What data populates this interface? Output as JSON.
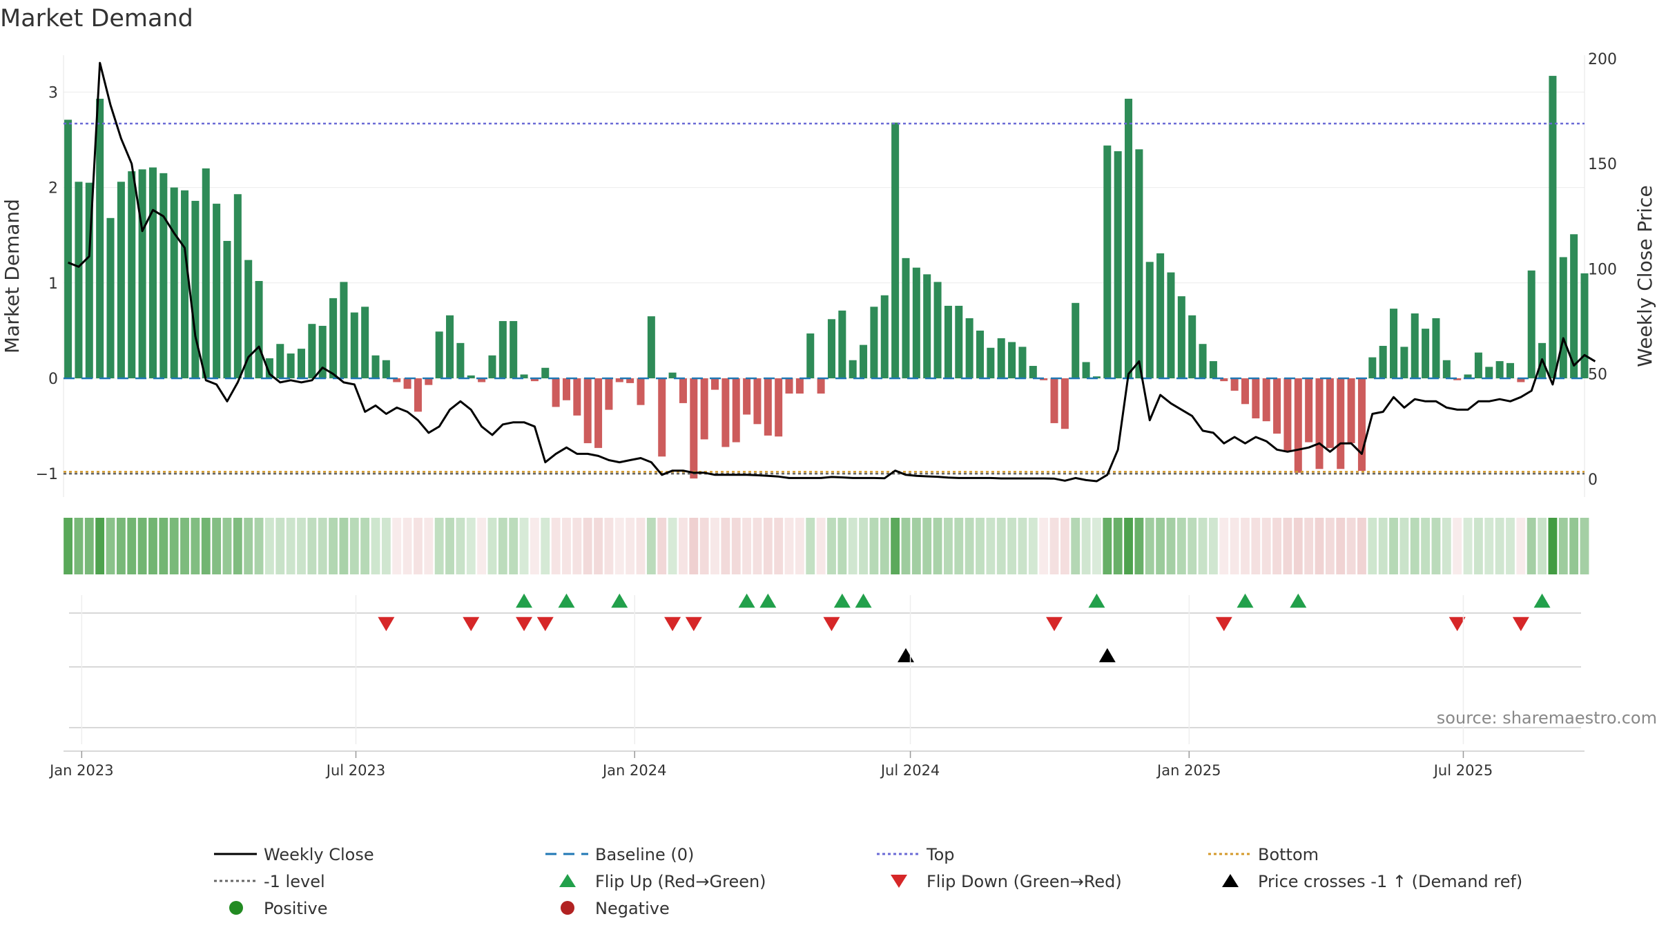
{
  "chart_data": {
    "type": "bar",
    "title": "Market Demand",
    "ylabel": "Market Demand",
    "y2label": "Weekly Close Price",
    "ylim": [
      -1.1,
      3.35
    ],
    "y2lim": [
      -2,
      200
    ],
    "yticks": [
      -1,
      0,
      1,
      2,
      3
    ],
    "y2ticks": [
      0,
      50,
      100,
      150,
      200
    ],
    "x_start": "2022-12-20",
    "x_end": "2025-09-19",
    "date_ticks": [
      {
        "date": "2023-01-01",
        "label": "Jan 2023"
      },
      {
        "date": "2023-07-01",
        "label": "Jul 2023"
      },
      {
        "date": "2024-01-01",
        "label": "Jan 2024"
      },
      {
        "date": "2024-07-01",
        "label": "Jul 2024"
      },
      {
        "date": "2025-01-01",
        "label": "Jan 2025"
      },
      {
        "date": "2025-07-01",
        "label": "Jul 2025"
      }
    ],
    "first_week": "2022-12-23",
    "week_step_days": 7,
    "demand": [
      2.71,
      2.06,
      2.05,
      2.93,
      1.68,
      2.06,
      2.17,
      2.19,
      2.21,
      2.15,
      2.0,
      1.97,
      1.86,
      2.2,
      1.83,
      1.44,
      1.93,
      1.24,
      1.02,
      0.21,
      0.36,
      0.26,
      0.31,
      0.57,
      0.55,
      0.84,
      1.01,
      0.69,
      0.75,
      0.24,
      0.19,
      -0.04,
      -0.11,
      -0.35,
      -0.07,
      0.49,
      0.66,
      0.37,
      0.03,
      -0.04,
      0.24,
      0.6,
      0.6,
      0.04,
      -0.03,
      0.11,
      -0.3,
      -0.23,
      -0.39,
      -0.68,
      -0.73,
      -0.33,
      -0.04,
      -0.05,
      -0.28,
      0.65,
      -0.82,
      0.06,
      -0.26,
      -1.05,
      -0.64,
      -0.12,
      -0.72,
      -0.67,
      -0.38,
      -0.48,
      -0.6,
      -0.61,
      -0.16,
      -0.16,
      0.47,
      -0.16,
      0.62,
      0.71,
      0.19,
      0.35,
      0.75,
      0.87,
      2.68,
      1.26,
      1.16,
      1.09,
      1.01,
      0.76,
      0.76,
      0.63,
      0.5,
      0.32,
      0.42,
      0.38,
      0.33,
      0.13,
      -0.02,
      -0.47,
      -0.53,
      0.79,
      0.17,
      0.02,
      2.44,
      2.38,
      2.93,
      2.4,
      1.22,
      1.31,
      1.11,
      0.86,
      0.66,
      0.36,
      0.18,
      -0.03,
      -0.13,
      -0.27,
      -0.42,
      -0.45,
      -0.58,
      -0.76,
      -0.99,
      -0.67,
      -0.95,
      -0.73,
      -0.95,
      -0.68,
      -0.97,
      0.22,
      0.34,
      0.73,
      0.33,
      0.68,
      0.52,
      0.63,
      0.19,
      -0.02,
      0.04,
      0.27,
      0.12,
      0.18,
      0.16,
      -0.04,
      1.13,
      0.37,
      3.17,
      1.27,
      1.51,
      1.1
    ],
    "weekly_close": [
      103,
      101,
      106,
      198,
      178,
      162,
      150,
      118,
      128,
      125,
      117,
      110,
      68,
      47,
      45,
      37,
      46,
      58,
      63,
      50,
      46,
      47,
      46,
      47,
      53,
      50,
      46,
      45,
      32,
      35,
      31,
      34,
      32,
      28,
      22,
      25,
      33,
      37,
      33,
      25,
      21,
      26,
      27,
      27,
      25,
      8,
      12,
      15,
      12,
      12,
      11,
      9,
      8,
      9,
      10,
      8,
      2,
      4,
      4,
      3,
      3,
      2,
      2,
      2,
      2,
      1.8,
      1.5,
      1.2,
      0.5,
      0.5,
      0.5,
      0.5,
      1,
      0.8,
      0.5,
      0.5,
      0.5,
      0.4,
      4,
      2,
      1.5,
      1.3,
      1.1,
      0.7,
      0.5,
      0.5,
      0.5,
      0.5,
      0.3,
      0.3,
      0.3,
      0.3,
      0.3,
      0.2,
      -0.8,
      0.5,
      -0.5,
      -1,
      2,
      14,
      50,
      56,
      28,
      40,
      36,
      33,
      30,
      23,
      22,
      17,
      20,
      17,
      20,
      18,
      14,
      13,
      14,
      15,
      17,
      13,
      17,
      17,
      12,
      31,
      32,
      39,
      34,
      38,
      37,
      37,
      34,
      33,
      33,
      37,
      37,
      38,
      37,
      39,
      42,
      57,
      45,
      67,
      54,
      59,
      56
    ],
    "top_level": 2.67,
    "bottom_level": -0.98,
    "minus1_level": -1,
    "flip_up_weeks": [
      43,
      47,
      52,
      64,
      66,
      73,
      75,
      97,
      111,
      116,
      139
    ],
    "flip_down_weeks": [
      30,
      38,
      43,
      45,
      57,
      59,
      72,
      93,
      109,
      131,
      137
    ],
    "price_cross_weeks": [
      79,
      98
    ],
    "colors": {
      "positive_bar": "#2e8b57",
      "negative_bar": "#cd5c5c",
      "weekly_close": "#000000",
      "baseline": "#1f77b4",
      "top": "#6a6ad6",
      "bottom": "#d49a2a",
      "minus1": "#666666",
      "flip_up": "#22a04b",
      "flip_down": "#d62728",
      "price_cross": "#000000",
      "positive_dot": "#228b22",
      "negative_dot": "#b22222"
    }
  },
  "legend": [
    {
      "label": "Weekly Close",
      "kind": "line-solid",
      "color": "#000000"
    },
    {
      "label": "Baseline (0)",
      "kind": "line-dash",
      "color": "#1f77b4"
    },
    {
      "label": "Top",
      "kind": "line-dot",
      "color": "#6a6ad6"
    },
    {
      "label": "Bottom",
      "kind": "line-dot",
      "color": "#d49a2a"
    },
    {
      "label": "-1 level",
      "kind": "line-dot",
      "color": "#666666"
    },
    {
      "label": "Flip Up (Red→Green)",
      "kind": "tri-up",
      "color": "#22a04b"
    },
    {
      "label": "Flip Down (Green→Red)",
      "kind": "tri-down",
      "color": "#d62728"
    },
    {
      "label": "Price crosses -1 ↑ (Demand ref)",
      "kind": "tri-up",
      "color": "#000000"
    },
    {
      "label": "Positive",
      "kind": "dot",
      "color": "#228b22"
    },
    {
      "label": "Negative",
      "kind": "dot",
      "color": "#b22222"
    }
  ],
  "source": "source: sharemaestro.com"
}
